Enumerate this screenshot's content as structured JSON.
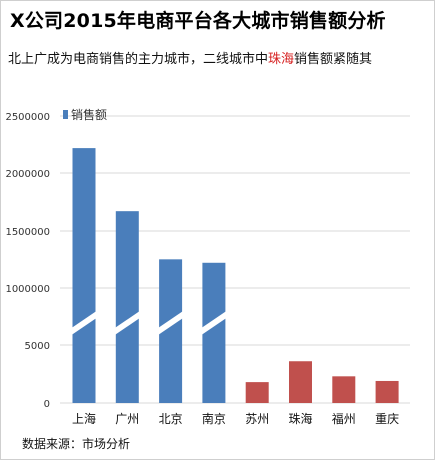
{
  "title_prefix": "X公司2015年电商平台各大城市销售额分析",
  "subtitle": {
    "before": "北上广成为电商销售的主力城市，二线城市中",
    "highlight": "珠海",
    "after": "销售额紧随其"
  },
  "source": "数据来源：市场分析",
  "colors": {
    "primary": "#4a7ebb",
    "secondary": "#c0504d",
    "grid": "#d9d9d9",
    "highlight": "#d62020"
  },
  "chart_data": {
    "type": "bar",
    "title": "X公司2015年电商平台各大城市销售额分析",
    "categories": [
      "上海",
      "广州",
      "北京",
      "南京",
      "苏州",
      "珠海",
      "福州",
      "重庆"
    ],
    "series": [
      {
        "name": "销售额",
        "values": [
          2220000,
          1670000,
          1250000,
          1220000,
          1800,
          3600,
          2300,
          1900
        ]
      }
    ],
    "highlight_group": [
      "苏州",
      "珠海",
      "福州",
      "重庆"
    ],
    "axis_break": true,
    "y_tick_labels": [
      "0",
      "5000",
      "1000000",
      "1500000",
      "2000000",
      "2500000"
    ],
    "ylim": [
      0,
      2500000
    ],
    "grid": true,
    "legend_position": "top-left"
  }
}
